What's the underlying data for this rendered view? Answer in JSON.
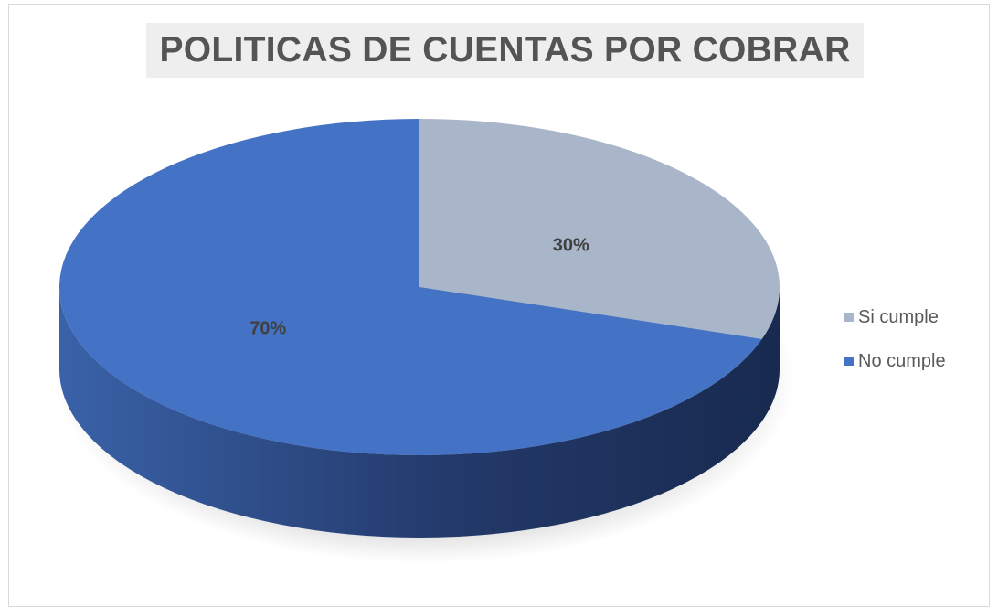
{
  "chart_data": {
    "type": "pie",
    "title": "POLITICAS DE CUENTAS POR COBRAR",
    "categories": [
      "Si cumple",
      "No cumple"
    ],
    "values": [
      30,
      70
    ],
    "data_labels": [
      "30%",
      "70%"
    ],
    "colors": [
      "#a9b5c8",
      "#4472c4"
    ],
    "style": "3d",
    "legend_position": "right"
  }
}
